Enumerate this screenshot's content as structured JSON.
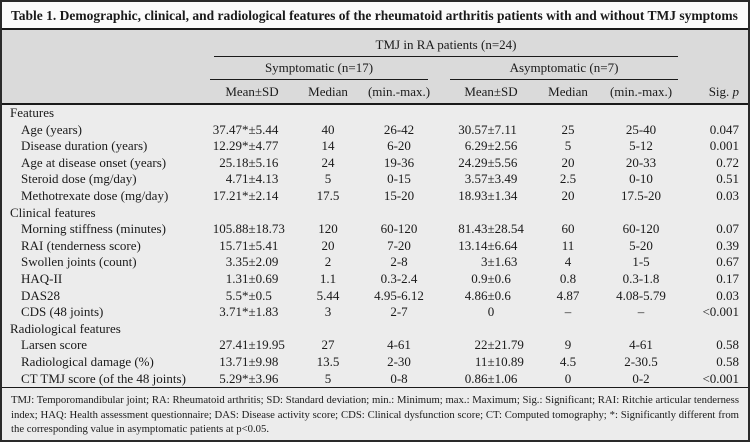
{
  "title": {
    "label": "Table 1.",
    "text": " Demographic, clinical, and radiological features of the rheumatoid arthritis patients with and without TMJ symptoms"
  },
  "header": {
    "overall_group": "TMJ in RA patients (n=24)",
    "groups": [
      "Symptomatic (n=17)",
      "Asymptomatic (n=7)"
    ],
    "subcolumns": [
      "Mean±SD",
      "Median",
      "(min.-max.)",
      "Mean±SD",
      "Median",
      "(min.-max.)"
    ],
    "sig_label": "Sig. ",
    "sig_label_italic": "p"
  },
  "rows": [
    {
      "type": "section",
      "label": "Features"
    },
    {
      "type": "data",
      "label": "Age (years)",
      "values": [
        "37.47*±5.44",
        "40",
        "26-42",
        "30.57±7.11",
        "25",
        "25-40",
        "0.047"
      ]
    },
    {
      "type": "data",
      "label": "Disease duration (years)",
      "values": [
        "12.29*±4.77",
        "14",
        "6-20",
        "6.29±2.56",
        "5",
        "5-12",
        "0.001"
      ]
    },
    {
      "type": "data",
      "label": "Age at disease onset (years)",
      "values": [
        "25.18±5.16",
        "24",
        "19-36",
        "24.29±5.56",
        "20",
        "20-33",
        "0.72"
      ]
    },
    {
      "type": "data",
      "label": "Steroid dose (mg/day)",
      "values": [
        "4.71±4.13",
        "5",
        "0-15",
        "3.57±3.49",
        "2.5",
        "0-10",
        "0.51"
      ]
    },
    {
      "type": "data",
      "label": "Methotrexate dose (mg/day)",
      "values": [
        "17.21*±2.14",
        "17.5",
        "15-20",
        "18.93±1.34",
        "20",
        "17.5-20",
        "0.03"
      ]
    },
    {
      "type": "section",
      "label": "Clinical features"
    },
    {
      "type": "data",
      "label": "Morning stiffness (minutes)",
      "values": [
        "105.88±18.73",
        "120",
        "60-120",
        "81.43±28.54",
        "60",
        "60-120",
        "0.07"
      ]
    },
    {
      "type": "data",
      "label": "RAI (tenderness score)",
      "values": [
        "15.71±5.41",
        "20",
        "7-20",
        "13.14±6.64",
        "11",
        "5-20",
        "0.39"
      ]
    },
    {
      "type": "data",
      "label": "Swollen joints (count)",
      "values": [
        "3.35±2.09",
        "2",
        "2-8",
        "3±1.63",
        "4",
        "1-5",
        "0.67"
      ]
    },
    {
      "type": "data",
      "label": "HAQ-II",
      "values": [
        "1.31±0.69",
        "1.1",
        "0.3-2.4",
        "0.9±0.6",
        "0.8",
        "0.3-1.8",
        "0.17"
      ]
    },
    {
      "type": "data",
      "label": "DAS28",
      "values": [
        "5.5*±0.5",
        "5.44",
        "4.95-6.12",
        "4.86±0.6",
        "4.87",
        "4.08-5.79",
        "0.03"
      ]
    },
    {
      "type": "data",
      "label": "CDS (48 joints)",
      "values": [
        "3.71*±1.83",
        "3",
        "2-7",
        "0",
        "–",
        "–",
        "<0.001"
      ]
    },
    {
      "type": "section",
      "label": "Radiological features"
    },
    {
      "type": "data",
      "label": "Larsen score",
      "values": [
        "27.41±19.95",
        "27",
        "4-61",
        "22±21.79",
        "9",
        "4-61",
        "0.58"
      ]
    },
    {
      "type": "data",
      "label": "Radiological damage (%)",
      "values": [
        "13.71±9.98",
        "13.5",
        "2-30",
        "11±10.89",
        "4.5",
        "2-30.5",
        "0.58"
      ]
    },
    {
      "type": "data",
      "label": "CT TMJ score (of the 48 joints)",
      "values": [
        "5.29*±3.96",
        "5",
        "0-8",
        "0.86±1.06",
        "0",
        "0-2",
        "<0.001"
      ]
    }
  ],
  "footnote": "TMJ: Temporomandibular joint; RA: Rheumatoid arthritis; SD: Standard deviation; min.: Minimum; max.: Maximum; Sig.: Significant; RAI: Ritchie articular tenderness index; HAQ: Health assessment questionnaire; DAS: Disease activity score; CDS: Clinical dysfunction score; CT: Computed tomography; *: Significantly different from the corresponding value in asymptomatic patients at p<0.05.",
  "colors": {
    "border": "#2a2a2a",
    "header_bg": "#dadada",
    "body_bg": "#ececec",
    "title_bg": "#fbfbfb",
    "text": "#1a1a1a"
  }
}
